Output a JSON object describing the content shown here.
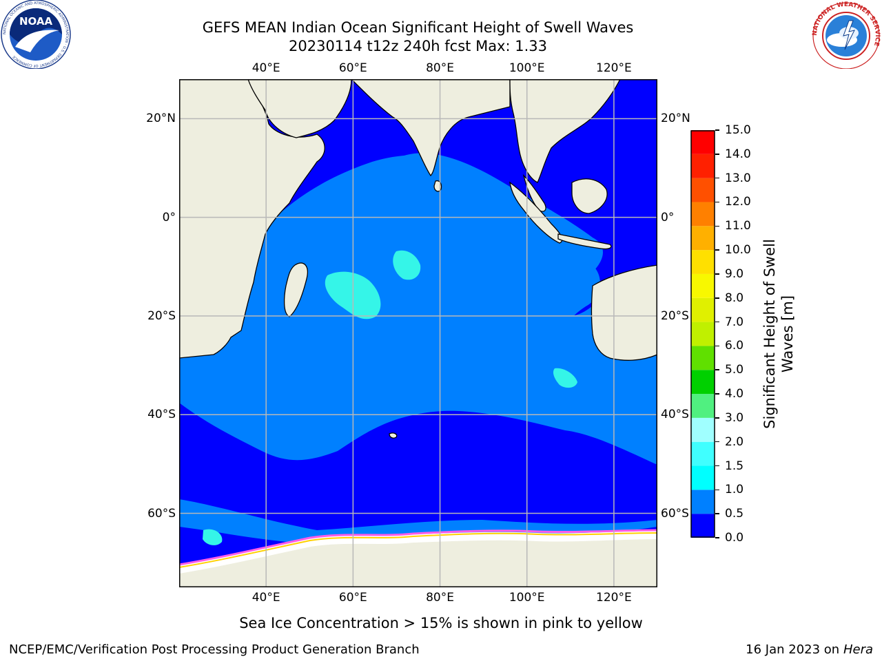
{
  "header": {
    "title_line1": "GEFS MEAN Indian Ocean Significant Height of Swell Waves",
    "title_line2": "20230114 t12z 240h fcst   Max: 1.33"
  },
  "map": {
    "lon_range": [
      20,
      130
    ],
    "lat_range": [
      -75,
      28
    ],
    "lon_ticks": [
      "40°E",
      "60°E",
      "80°E",
      "100°E",
      "120°E"
    ],
    "lon_tick_values": [
      40,
      60,
      80,
      100,
      120
    ],
    "lat_ticks": [
      "20°N",
      "0°",
      "20°S",
      "40°S",
      "60°S"
    ],
    "lat_tick_values": [
      20,
      0,
      -20,
      -40,
      -60
    ],
    "colors": {
      "land": "#eeeedf",
      "low": "#0000ff",
      "mid": "#0080ff",
      "high": "#35f5e8",
      "grid": "#b8b8b8"
    }
  },
  "colorbar": {
    "title": "Significant Height of Swell Waves [m]",
    "levels": [
      "0.0",
      "0.5",
      "1.0",
      "1.5",
      "2.0",
      "3.0",
      "4.0",
      "5.0",
      "6.0",
      "7.0",
      "8.0",
      "9.0",
      "10.0",
      "11.0",
      "12.0",
      "13.0",
      "14.0",
      "15.0"
    ],
    "colors": [
      "#0000ff",
      "#0080ff",
      "#00ffff",
      "#40ffff",
      "#a0ffff",
      "#50f080",
      "#00d000",
      "#60e000",
      "#c0f000",
      "#e0f000",
      "#f8f800",
      "#ffe000",
      "#ffb000",
      "#ff8000",
      "#ff5000",
      "#ff2000",
      "#ff0000"
    ]
  },
  "footer": {
    "caption": "Sea Ice Concentration > 15% is shown in pink to yellow",
    "branch": "NCEP/EMC/Verification Post Processing Product Generation Branch",
    "date": "16 Jan 2023 on ",
    "host": "Hera"
  },
  "logos": {
    "noaa_text": "NOAA",
    "noaa_ring": "NATIONAL OCEANIC AND ATMOSPHERIC ADMINISTRATION · U.S. DEPARTMENT OF COMMERCE",
    "nws_ring": "NATIONAL WEATHER SERVICE"
  }
}
